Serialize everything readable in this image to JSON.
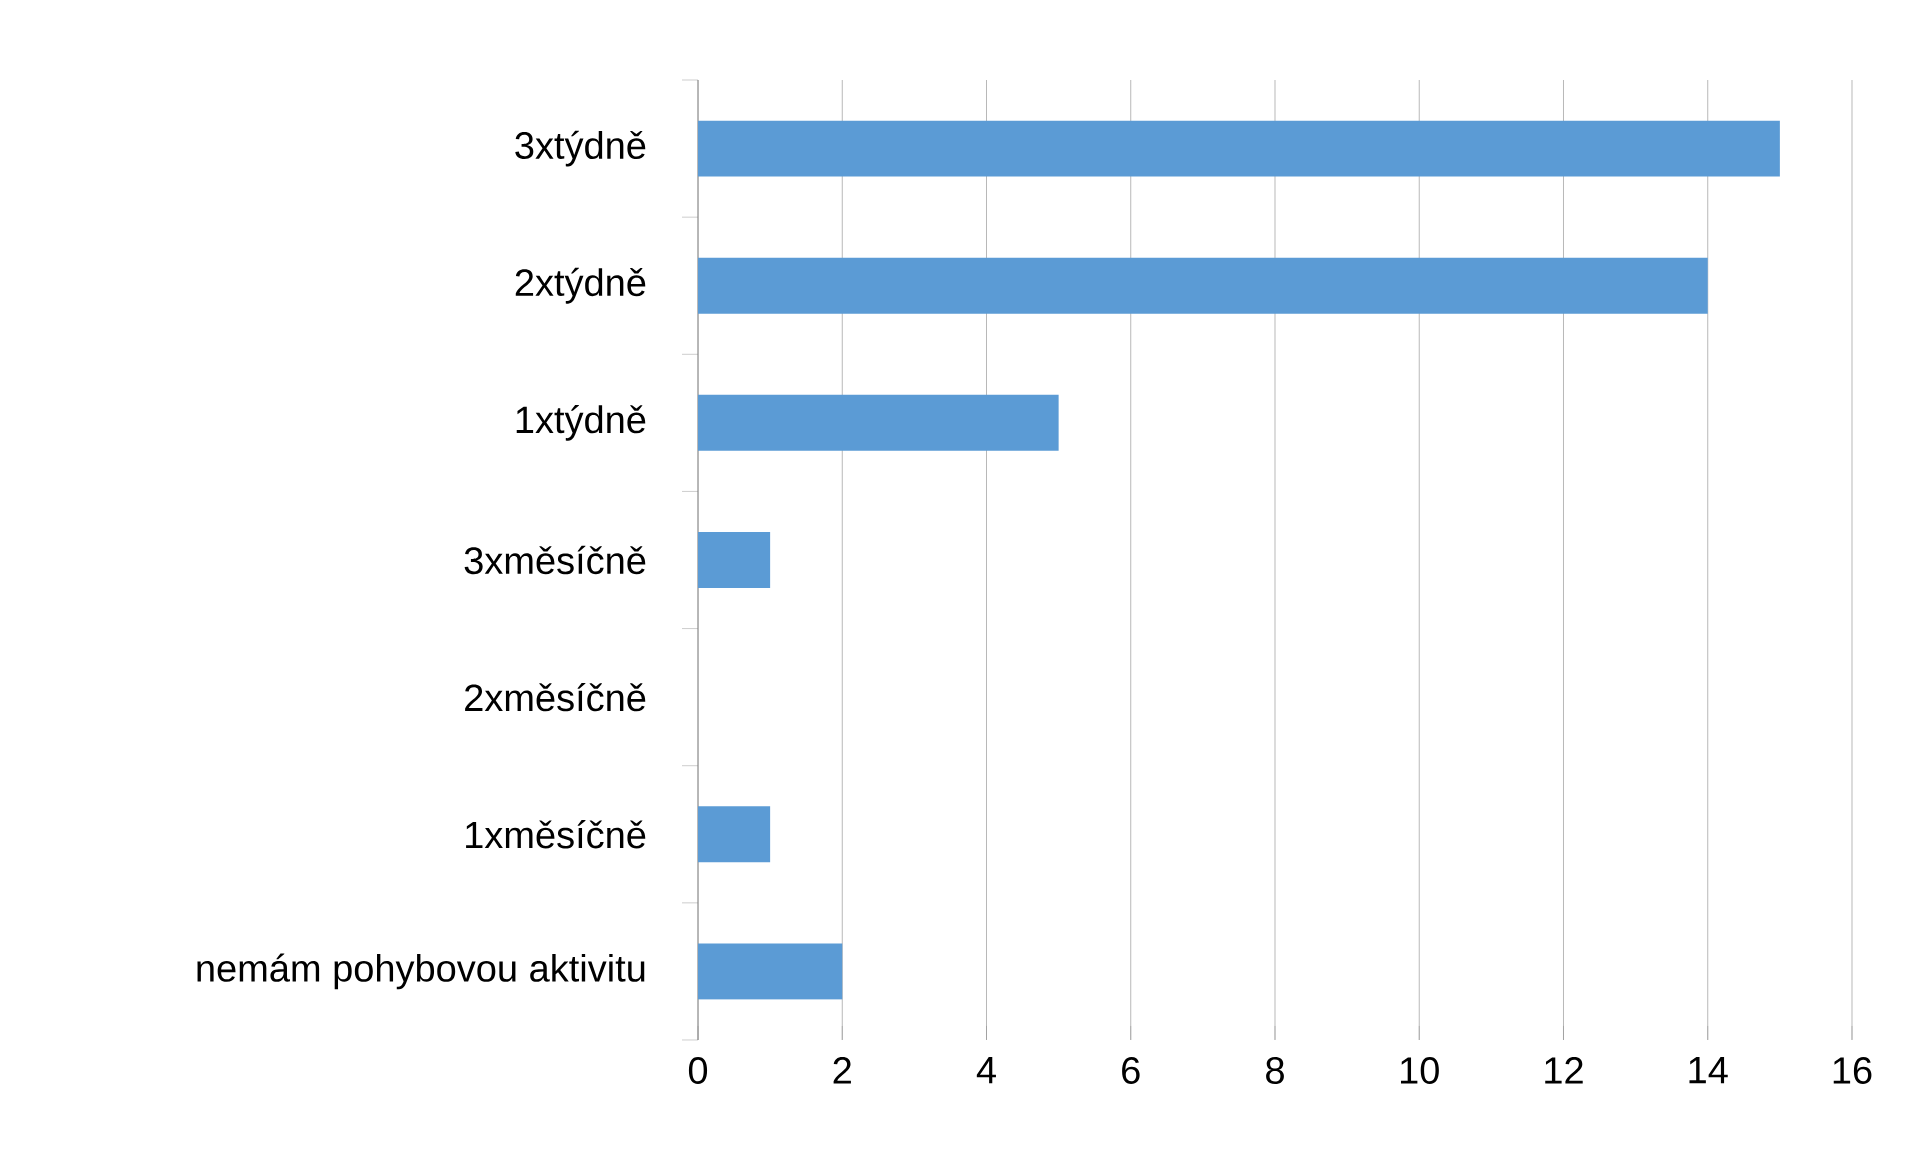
{
  "chart_data": {
    "type": "bar",
    "orientation": "horizontal",
    "categories": [
      "3xtýdně",
      "2xtýdně",
      "1xtýdně",
      "3xměsíčně",
      "2xměsíčně",
      "1xměsíčně",
      "nemám pohybovou aktivitu"
    ],
    "values": [
      15,
      14,
      5,
      1,
      0,
      1,
      2
    ],
    "color": "#5b9bd5",
    "xlim": [
      0,
      16
    ],
    "xticks": [
      0,
      2,
      4,
      6,
      8,
      10,
      12,
      14,
      16
    ],
    "grid": "x"
  }
}
